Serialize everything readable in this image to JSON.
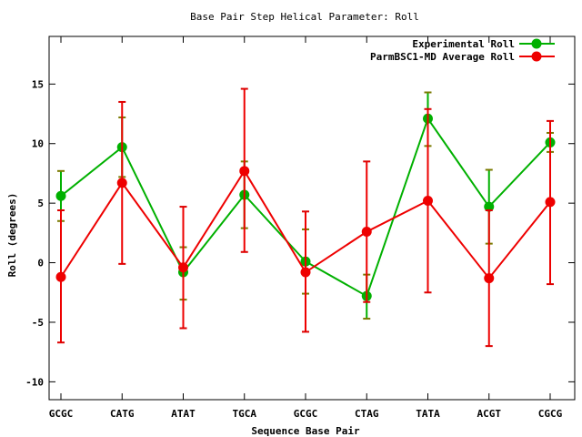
{
  "chart_data": {
    "type": "line",
    "title": "Base Pair Step Helical Parameter: Roll",
    "xlabel": "Sequence Base Pair",
    "ylabel": "Roll (degrees)",
    "categories": [
      "GCGC",
      "CATG",
      "ATAT",
      "TGCA",
      "GCGC",
      "CTAG",
      "TATA",
      "ACGT",
      "CGCG"
    ],
    "ylim": [
      -11.5,
      19
    ],
    "yticks": [
      -10,
      -5,
      0,
      5,
      10,
      15
    ],
    "grid": false,
    "legend_position": "top-right",
    "series": [
      {
        "name": "Experimental Roll",
        "color": "#00b000",
        "errbar_color": "#7a7a00",
        "values": [
          5.6,
          9.7,
          -0.8,
          5.7,
          0.1,
          -2.8,
          12.1,
          4.7,
          10.1
        ],
        "err_low": [
          3.5,
          7.2,
          -3.1,
          2.9,
          -2.6,
          -4.7,
          9.8,
          1.6,
          9.3
        ],
        "err_high": [
          7.7,
          12.2,
          1.3,
          8.5,
          2.8,
          -1.0,
          14.3,
          7.8,
          10.9
        ]
      },
      {
        "name": "ParmBSC1-MD Average Roll",
        "color": "#ee0000",
        "errbar_color": "#dd0000",
        "values": [
          -1.2,
          6.7,
          -0.4,
          7.7,
          -0.8,
          2.6,
          5.2,
          -1.3,
          5.1
        ],
        "err_low": [
          -6.7,
          -0.1,
          -5.5,
          0.9,
          -5.8,
          -3.3,
          -2.5,
          -7.0,
          -1.8
        ],
        "err_high": [
          4.4,
          13.5,
          4.7,
          14.6,
          4.3,
          8.5,
          12.9,
          4.4,
          11.9
        ]
      }
    ]
  }
}
